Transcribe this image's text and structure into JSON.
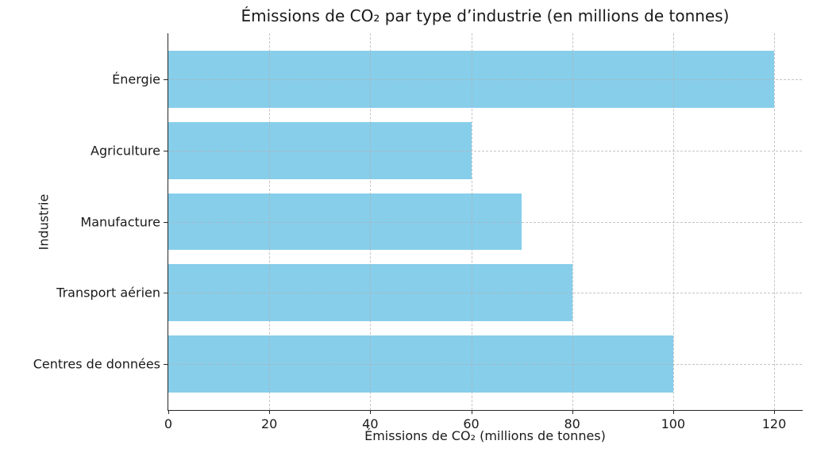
{
  "chart_data": {
    "type": "bar",
    "orientation": "horizontal",
    "title": "Émissions de CO₂ par type d’industrie (en millions de tonnes)",
    "xlabel": "Émissions de CO₂ (millions de tonnes)",
    "ylabel": "Industrie",
    "categories": [
      "Énergie",
      "Agriculture",
      "Manufacture",
      "Transport aérien",
      "Centres de données"
    ],
    "values": [
      120,
      60,
      70,
      80,
      100
    ],
    "xticks": [
      0,
      20,
      40,
      60,
      80,
      100,
      120
    ],
    "xlim": [
      0,
      125.5
    ],
    "bar_color": "#87CEEB",
    "grid": true,
    "grid_style": "dashed",
    "grid_color": "#b0b0b0",
    "legend": "none"
  }
}
